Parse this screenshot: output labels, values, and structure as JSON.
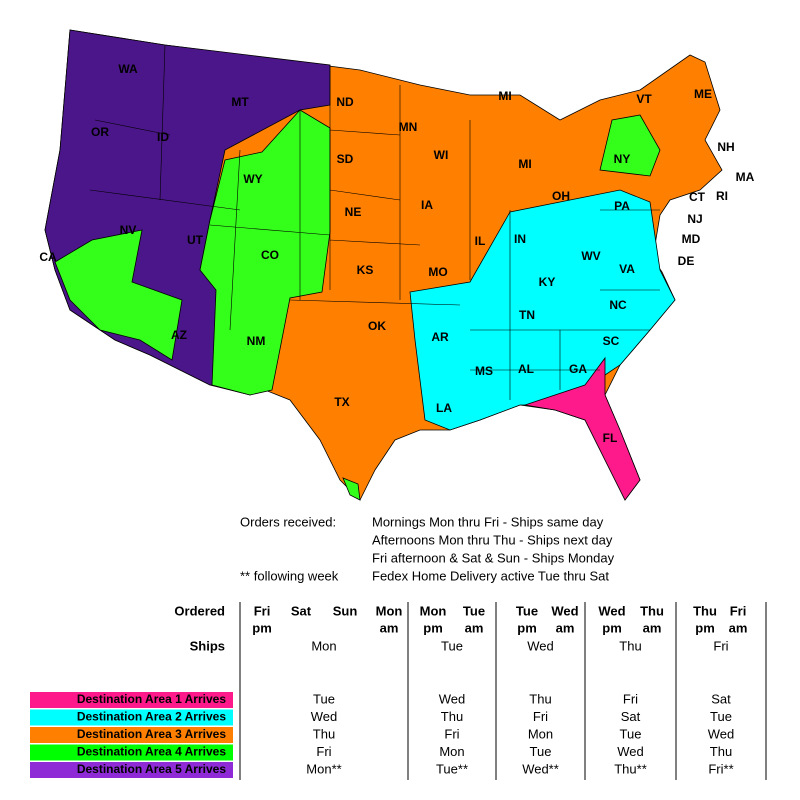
{
  "map": {
    "states": [
      "WA",
      "MT",
      "ND",
      "MN",
      "MI",
      "VT",
      "ME",
      "OR",
      "ID",
      "SD",
      "WI",
      "MI",
      "NY",
      "NH",
      "WY",
      "MA",
      "CT",
      "RI",
      "NV",
      "NE",
      "IA",
      "PA",
      "NJ",
      "OH",
      "IN",
      "IL",
      "UT",
      "CO",
      "MD",
      "WV",
      "VA",
      "DE",
      "CA",
      "KS",
      "MO",
      "KY",
      "NC",
      "TN",
      "OK",
      "AR",
      "SC",
      "AZ",
      "NM",
      "MS",
      "AL",
      "GA",
      "TX",
      "LA",
      "FL"
    ]
  },
  "notes": {
    "orders_label": "Orders received:",
    "following_label": "** following week",
    "lines": [
      "Mornings Mon thru Fri - Ships same day",
      "Afternoons Mon thru Thu - Ships next day",
      "Fri afternoon & Sat & Sun - Ships Monday",
      "Fedex Home Delivery active Tue thru Sat"
    ]
  },
  "table": {
    "ordered_label": "Ordered",
    "ships_label": "Ships",
    "groups": [
      {
        "ordered": [
          [
            "Fri",
            "pm"
          ],
          [
            "Sat"
          ],
          [
            "Sun"
          ],
          [
            "Mon",
            "am"
          ]
        ],
        "ships": "Mon"
      },
      {
        "ordered": [
          [
            "Mon",
            "pm"
          ],
          [
            "Tue",
            "am"
          ]
        ],
        "ships": "Tue"
      },
      {
        "ordered": [
          [
            "Tue",
            "pm"
          ],
          [
            "Wed",
            "am"
          ]
        ],
        "ships": "Wed"
      },
      {
        "ordered": [
          [
            "Wed",
            "pm"
          ],
          [
            "Thu",
            "am"
          ]
        ],
        "ships": "Thu"
      },
      {
        "ordered": [
          [
            "Thu",
            "pm"
          ],
          [
            "Fri",
            "am"
          ]
        ],
        "ships": "Fri"
      }
    ],
    "rows": [
      {
        "label": "Destination Area 1 Arrives",
        "color": "#ff1a8c",
        "arrivals": [
          "Tue",
          "Wed",
          "Thu",
          "Fri",
          "Sat"
        ]
      },
      {
        "label": "Destination Area 2 Arrives",
        "color": "#00ffff",
        "arrivals": [
          "Wed",
          "Thu",
          "Fri",
          "Sat",
          "Tue"
        ]
      },
      {
        "label": "Destination Area 3 Arrives",
        "color": "#ff8000",
        "arrivals": [
          "Thu",
          "Fri",
          "Mon",
          "Tue",
          "Wed"
        ]
      },
      {
        "label": "Destination Area 4 Arrives",
        "color": "#00ff00",
        "arrivals": [
          "Fri",
          "Mon",
          "Tue",
          "Wed",
          "Thu"
        ]
      },
      {
        "label": "Destination Area 5 Arrives",
        "color": "#8e2bd6",
        "arrivals": [
          "Mon**",
          "Tue**",
          "Wed**",
          "Thu**",
          "Fri**"
        ]
      }
    ]
  }
}
